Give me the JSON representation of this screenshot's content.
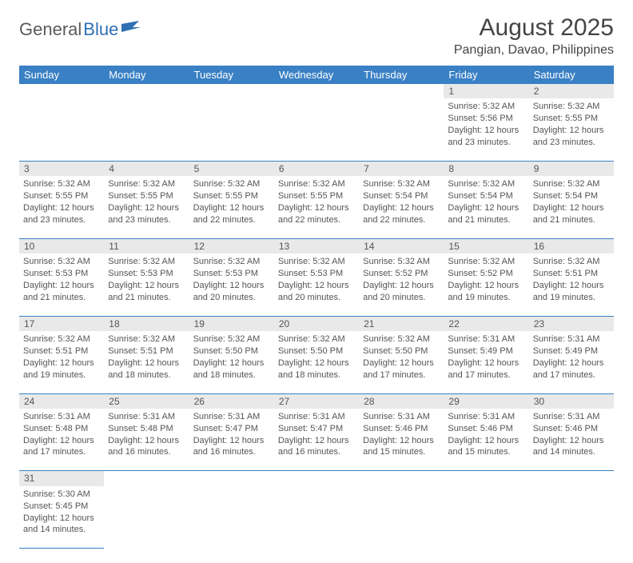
{
  "brand": {
    "part1": "General",
    "part2": "Blue"
  },
  "title": "August 2025",
  "location": "Pangian, Davao, Philippines",
  "colors": {
    "header_bg": "#3a80c4",
    "header_text": "#ffffff",
    "daynum_bg": "#e9e9e9",
    "text": "#555555",
    "rule": "#3a80c4",
    "brand_accent": "#2f6fb3"
  },
  "weekdays": [
    "Sunday",
    "Monday",
    "Tuesday",
    "Wednesday",
    "Thursday",
    "Friday",
    "Saturday"
  ],
  "weeks": [
    [
      null,
      null,
      null,
      null,
      null,
      {
        "n": "1",
        "sr": "Sunrise: 5:32 AM",
        "ss": "Sunset: 5:56 PM",
        "d1": "Daylight: 12 hours",
        "d2": "and 23 minutes."
      },
      {
        "n": "2",
        "sr": "Sunrise: 5:32 AM",
        "ss": "Sunset: 5:55 PM",
        "d1": "Daylight: 12 hours",
        "d2": "and 23 minutes."
      }
    ],
    [
      {
        "n": "3",
        "sr": "Sunrise: 5:32 AM",
        "ss": "Sunset: 5:55 PM",
        "d1": "Daylight: 12 hours",
        "d2": "and 23 minutes."
      },
      {
        "n": "4",
        "sr": "Sunrise: 5:32 AM",
        "ss": "Sunset: 5:55 PM",
        "d1": "Daylight: 12 hours",
        "d2": "and 23 minutes."
      },
      {
        "n": "5",
        "sr": "Sunrise: 5:32 AM",
        "ss": "Sunset: 5:55 PM",
        "d1": "Daylight: 12 hours",
        "d2": "and 22 minutes."
      },
      {
        "n": "6",
        "sr": "Sunrise: 5:32 AM",
        "ss": "Sunset: 5:55 PM",
        "d1": "Daylight: 12 hours",
        "d2": "and 22 minutes."
      },
      {
        "n": "7",
        "sr": "Sunrise: 5:32 AM",
        "ss": "Sunset: 5:54 PM",
        "d1": "Daylight: 12 hours",
        "d2": "and 22 minutes."
      },
      {
        "n": "8",
        "sr": "Sunrise: 5:32 AM",
        "ss": "Sunset: 5:54 PM",
        "d1": "Daylight: 12 hours",
        "d2": "and 21 minutes."
      },
      {
        "n": "9",
        "sr": "Sunrise: 5:32 AM",
        "ss": "Sunset: 5:54 PM",
        "d1": "Daylight: 12 hours",
        "d2": "and 21 minutes."
      }
    ],
    [
      {
        "n": "10",
        "sr": "Sunrise: 5:32 AM",
        "ss": "Sunset: 5:53 PM",
        "d1": "Daylight: 12 hours",
        "d2": "and 21 minutes."
      },
      {
        "n": "11",
        "sr": "Sunrise: 5:32 AM",
        "ss": "Sunset: 5:53 PM",
        "d1": "Daylight: 12 hours",
        "d2": "and 21 minutes."
      },
      {
        "n": "12",
        "sr": "Sunrise: 5:32 AM",
        "ss": "Sunset: 5:53 PM",
        "d1": "Daylight: 12 hours",
        "d2": "and 20 minutes."
      },
      {
        "n": "13",
        "sr": "Sunrise: 5:32 AM",
        "ss": "Sunset: 5:53 PM",
        "d1": "Daylight: 12 hours",
        "d2": "and 20 minutes."
      },
      {
        "n": "14",
        "sr": "Sunrise: 5:32 AM",
        "ss": "Sunset: 5:52 PM",
        "d1": "Daylight: 12 hours",
        "d2": "and 20 minutes."
      },
      {
        "n": "15",
        "sr": "Sunrise: 5:32 AM",
        "ss": "Sunset: 5:52 PM",
        "d1": "Daylight: 12 hours",
        "d2": "and 19 minutes."
      },
      {
        "n": "16",
        "sr": "Sunrise: 5:32 AM",
        "ss": "Sunset: 5:51 PM",
        "d1": "Daylight: 12 hours",
        "d2": "and 19 minutes."
      }
    ],
    [
      {
        "n": "17",
        "sr": "Sunrise: 5:32 AM",
        "ss": "Sunset: 5:51 PM",
        "d1": "Daylight: 12 hours",
        "d2": "and 19 minutes."
      },
      {
        "n": "18",
        "sr": "Sunrise: 5:32 AM",
        "ss": "Sunset: 5:51 PM",
        "d1": "Daylight: 12 hours",
        "d2": "and 18 minutes."
      },
      {
        "n": "19",
        "sr": "Sunrise: 5:32 AM",
        "ss": "Sunset: 5:50 PM",
        "d1": "Daylight: 12 hours",
        "d2": "and 18 minutes."
      },
      {
        "n": "20",
        "sr": "Sunrise: 5:32 AM",
        "ss": "Sunset: 5:50 PM",
        "d1": "Daylight: 12 hours",
        "d2": "and 18 minutes."
      },
      {
        "n": "21",
        "sr": "Sunrise: 5:32 AM",
        "ss": "Sunset: 5:50 PM",
        "d1": "Daylight: 12 hours",
        "d2": "and 17 minutes."
      },
      {
        "n": "22",
        "sr": "Sunrise: 5:31 AM",
        "ss": "Sunset: 5:49 PM",
        "d1": "Daylight: 12 hours",
        "d2": "and 17 minutes."
      },
      {
        "n": "23",
        "sr": "Sunrise: 5:31 AM",
        "ss": "Sunset: 5:49 PM",
        "d1": "Daylight: 12 hours",
        "d2": "and 17 minutes."
      }
    ],
    [
      {
        "n": "24",
        "sr": "Sunrise: 5:31 AM",
        "ss": "Sunset: 5:48 PM",
        "d1": "Daylight: 12 hours",
        "d2": "and 17 minutes."
      },
      {
        "n": "25",
        "sr": "Sunrise: 5:31 AM",
        "ss": "Sunset: 5:48 PM",
        "d1": "Daylight: 12 hours",
        "d2": "and 16 minutes."
      },
      {
        "n": "26",
        "sr": "Sunrise: 5:31 AM",
        "ss": "Sunset: 5:47 PM",
        "d1": "Daylight: 12 hours",
        "d2": "and 16 minutes."
      },
      {
        "n": "27",
        "sr": "Sunrise: 5:31 AM",
        "ss": "Sunset: 5:47 PM",
        "d1": "Daylight: 12 hours",
        "d2": "and 16 minutes."
      },
      {
        "n": "28",
        "sr": "Sunrise: 5:31 AM",
        "ss": "Sunset: 5:46 PM",
        "d1": "Daylight: 12 hours",
        "d2": "and 15 minutes."
      },
      {
        "n": "29",
        "sr": "Sunrise: 5:31 AM",
        "ss": "Sunset: 5:46 PM",
        "d1": "Daylight: 12 hours",
        "d2": "and 15 minutes."
      },
      {
        "n": "30",
        "sr": "Sunrise: 5:31 AM",
        "ss": "Sunset: 5:46 PM",
        "d1": "Daylight: 12 hours",
        "d2": "and 14 minutes."
      }
    ],
    [
      {
        "n": "31",
        "sr": "Sunrise: 5:30 AM",
        "ss": "Sunset: 5:45 PM",
        "d1": "Daylight: 12 hours",
        "d2": "and 14 minutes."
      },
      null,
      null,
      null,
      null,
      null,
      null
    ]
  ]
}
